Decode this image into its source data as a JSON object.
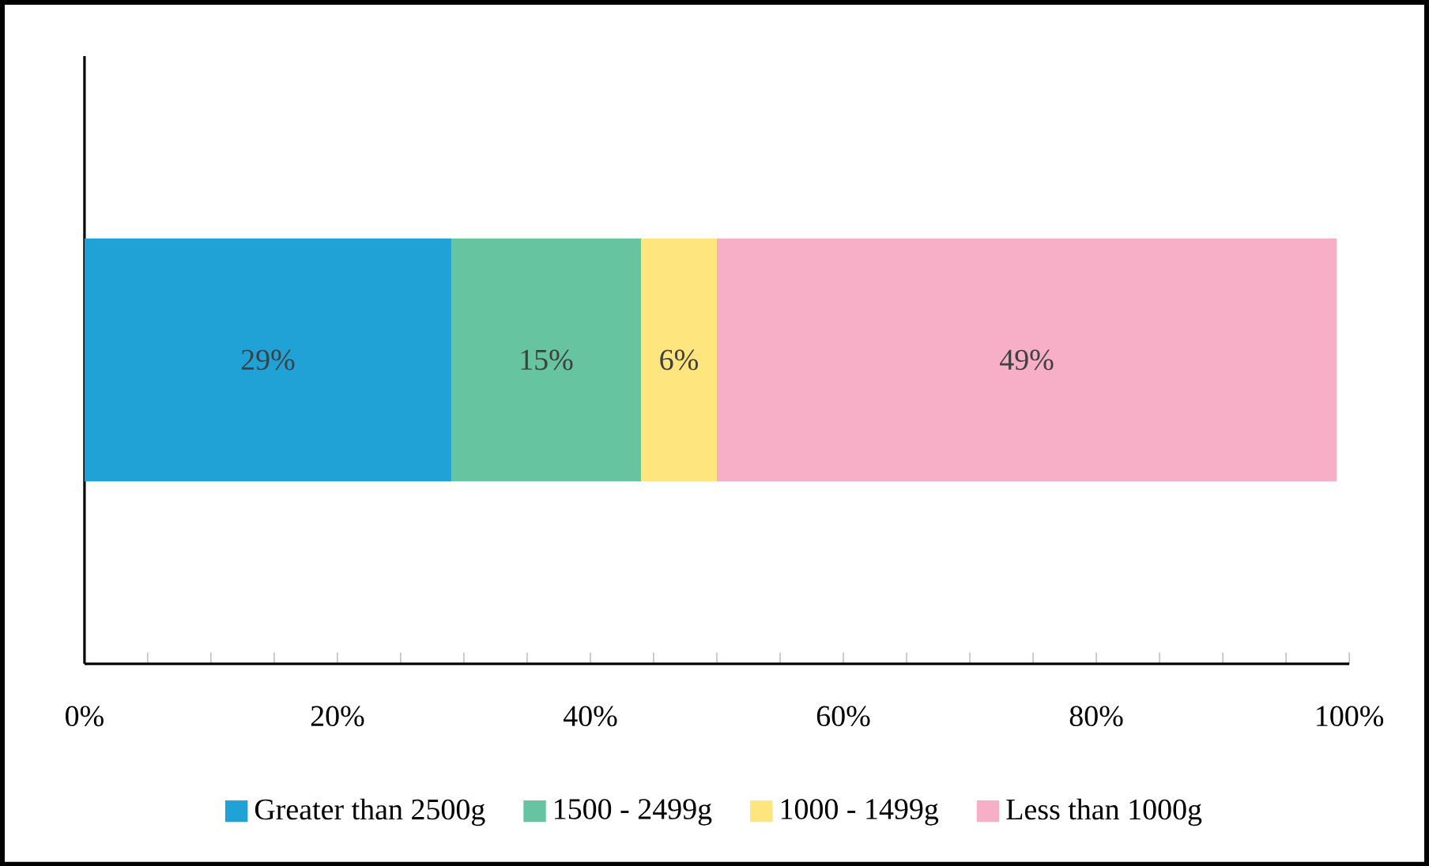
{
  "chart_data": {
    "type": "bar",
    "orientation": "horizontal",
    "stacked": true,
    "categories": [
      null
    ],
    "series": [
      {
        "name": "Greater than 2500g",
        "color": "#21a2d6",
        "values": [
          29
        ],
        "value_labels": [
          "29%"
        ]
      },
      {
        "name": "1500 - 2499g",
        "color": "#66c5a0",
        "values": [
          15
        ],
        "value_labels": [
          "15%"
        ]
      },
      {
        "name": "1000 - 1499g",
        "color": "#fee57d",
        "values": [
          6
        ],
        "value_labels": [
          "6%"
        ]
      },
      {
        "name": "Less than 1000g",
        "color": "#f6afc7",
        "values": [
          49
        ],
        "value_labels": [
          "49%"
        ]
      }
    ],
    "xlim": [
      0,
      100
    ],
    "xticks": [
      {
        "value": 0,
        "label": "0%"
      },
      {
        "value": 5,
        "label": null
      },
      {
        "value": 10,
        "label": null
      },
      {
        "value": 15,
        "label": null
      },
      {
        "value": 20,
        "label": "20%"
      },
      {
        "value": 25,
        "label": null
      },
      {
        "value": 30,
        "label": null
      },
      {
        "value": 35,
        "label": null
      },
      {
        "value": 40,
        "label": "40%"
      },
      {
        "value": 45,
        "label": null
      },
      {
        "value": 50,
        "label": null
      },
      {
        "value": 55,
        "label": null
      },
      {
        "value": 60,
        "label": "60%"
      },
      {
        "value": 65,
        "label": null
      },
      {
        "value": 70,
        "label": null
      },
      {
        "value": 75,
        "label": null
      },
      {
        "value": 80,
        "label": "80%"
      },
      {
        "value": 85,
        "label": null
      },
      {
        "value": 90,
        "label": null
      },
      {
        "value": 95,
        "label": null
      },
      {
        "value": 100,
        "label": "100%"
      }
    ],
    "grid": false,
    "legend": "bottom"
  }
}
